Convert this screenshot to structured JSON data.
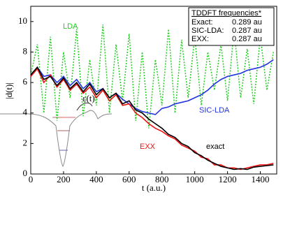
{
  "chart_data": {
    "type": "line",
    "xlabel": "t (a.u.)",
    "ylabel": "|d(t)|",
    "xlim": [
      0,
      1500
    ],
    "xticks": [
      0,
      200,
      400,
      600,
      800,
      1000,
      1200,
      1400
    ],
    "ylim": [
      0,
      11
    ],
    "yticks": [
      0,
      2,
      4,
      6,
      8,
      10
    ],
    "x": [
      0,
      40,
      80,
      120,
      160,
      200,
      240,
      280,
      320,
      360,
      400,
      440,
      480,
      520,
      560,
      600,
      640,
      680,
      720,
      760,
      800,
      840,
      880,
      920,
      960,
      1000,
      1040,
      1080,
      1120,
      1160,
      1200,
      1240,
      1280,
      1320,
      1360,
      1400,
      1440,
      1480
    ],
    "series": [
      {
        "name": "LDA",
        "color": "#22cc22",
        "style": "dotted",
        "values": [
          6.5,
          8.5,
          4.0,
          9.0,
          3.5,
          8.0,
          5.0,
          9.5,
          3.8,
          7.5,
          4.5,
          9.8,
          4.0,
          8.5,
          4.8,
          9.2,
          3.5,
          8.0,
          3.0,
          7.5,
          4.5,
          9.5,
          4.0,
          8.8,
          5.0,
          9.0,
          4.5,
          8.0,
          5.5,
          8.5,
          4.8,
          9.5,
          5.0,
          8.2,
          4.6,
          9.0,
          5.5,
          8.0
        ]
      },
      {
        "name": "SIC-LDA",
        "color": "#2233dd",
        "style": "solid",
        "values": [
          6.5,
          7.0,
          6.4,
          6.5,
          6.0,
          6.4,
          5.8,
          6.2,
          5.6,
          6.0,
          5.4,
          5.6,
          5.0,
          5.3,
          4.9,
          4.6,
          4.3,
          4.1,
          4.0,
          3.9,
          4.3,
          4.4,
          4.6,
          4.7,
          4.8,
          5.0,
          5.2,
          5.5,
          5.9,
          6.2,
          6.4,
          6.5,
          6.6,
          6.8,
          6.9,
          7.0,
          7.2,
          7.5
        ]
      },
      {
        "name": "EXX",
        "color": "#ee1111",
        "style": "solid",
        "values": [
          6.4,
          6.9,
          6.0,
          6.5,
          5.7,
          6.2,
          5.5,
          5.9,
          5.3,
          5.7,
          5.0,
          5.5,
          4.8,
          5.2,
          4.5,
          4.6,
          4.0,
          3.7,
          3.3,
          3.0,
          2.8,
          2.5,
          2.3,
          1.9,
          1.7,
          1.5,
          1.1,
          1.0,
          0.6,
          0.6,
          0.4,
          0.4,
          0.3,
          0.4,
          0.5,
          0.6,
          0.6,
          0.7
        ]
      },
      {
        "name": "exact",
        "color": "#000000",
        "style": "solid",
        "values": [
          6.5,
          7.0,
          6.2,
          6.4,
          5.8,
          6.3,
          5.6,
          6.0,
          5.4,
          5.9,
          5.2,
          5.6,
          5.0,
          5.3,
          4.6,
          4.8,
          4.2,
          4.0,
          3.6,
          3.3,
          3.0,
          2.6,
          2.4,
          2.0,
          1.8,
          1.4,
          1.2,
          0.9,
          0.7,
          0.5,
          0.4,
          0.3,
          0.35,
          0.3,
          0.45,
          0.5,
          0.55,
          0.6
        ]
      }
    ],
    "frequency_box": {
      "title": "TDDFT frequencies*",
      "rows": [
        [
          "Exact:",
          "0.289 au"
        ],
        [
          "SIC-LDA:",
          "0.287 au"
        ],
        [
          "EXX:",
          "0.287 au"
        ]
      ]
    },
    "inset_label": "ε(t)"
  }
}
